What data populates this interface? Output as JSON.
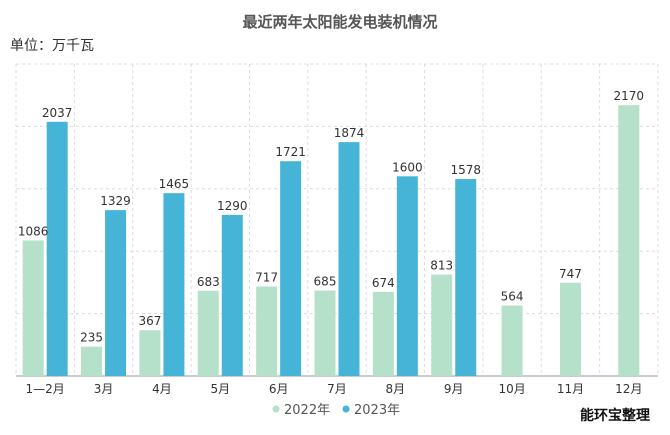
{
  "chart_data": {
    "type": "bar",
    "title": "最近两年太阳能发电装机情况",
    "unit_label": "单位：万千瓦",
    "categories": [
      "1—2月",
      "3月",
      "4月",
      "5月",
      "6月",
      "7月",
      "8月",
      "9月",
      "10月",
      "11月",
      "12月"
    ],
    "series": [
      {
        "name": "2022年",
        "color": "#b5e0c9",
        "values": [
          1086,
          235,
          367,
          683,
          717,
          685,
          674,
          813,
          564,
          747,
          2170
        ]
      },
      {
        "name": "2023年",
        "color": "#46b4d6",
        "values": [
          2037,
          1329,
          1465,
          1290,
          1721,
          1874,
          1600,
          1578,
          null,
          null,
          null
        ]
      }
    ],
    "ylim": [
      0,
      2500
    ],
    "grid": true,
    "legend_position": "bottom",
    "source_note": "能环宝整理"
  }
}
